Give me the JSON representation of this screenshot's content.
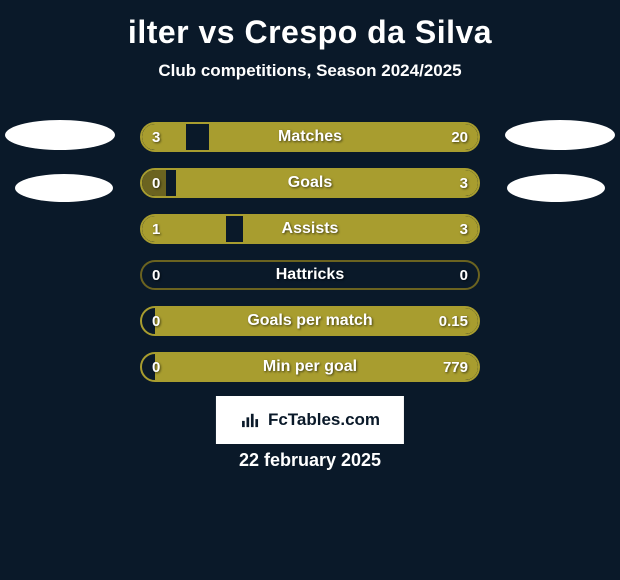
{
  "title": "ilter vs Crespo da Silva",
  "subtitle": "Club competitions, Season 2024/2025",
  "footer_label": "FcTables.com",
  "date": "22 february 2025",
  "colors": {
    "background": "#0a1929",
    "accent": "#a89d2f",
    "border_dim": "#6b6320",
    "text": "#ffffff",
    "logo_bg": "#ffffff"
  },
  "bars": [
    {
      "label": "Matches",
      "left": "3",
      "right": "20",
      "left_pct": 13,
      "right_pct": 80,
      "left_color": "#a89d2f",
      "right_color": "#a89d2f",
      "border_color": "#a89d2f"
    },
    {
      "label": "Goals",
      "left": "0",
      "right": "3",
      "left_pct": 7,
      "right_pct": 90,
      "left_color": "#6b6320",
      "right_color": "#a89d2f",
      "border_color": "#a89d2f"
    },
    {
      "label": "Assists",
      "left": "1",
      "right": "3",
      "left_pct": 25,
      "right_pct": 70,
      "left_color": "#a89d2f",
      "right_color": "#a89d2f",
      "border_color": "#a89d2f"
    },
    {
      "label": "Hattricks",
      "left": "0",
      "right": "0",
      "left_pct": 0,
      "right_pct": 0,
      "left_color": "#6b6320",
      "right_color": "#6b6320",
      "border_color": "#6b6320"
    },
    {
      "label": "Goals per match",
      "left": "0",
      "right": "0.15",
      "left_pct": 0,
      "right_pct": 96,
      "left_color": "#6b6320",
      "right_color": "#a89d2f",
      "border_color": "#a89d2f"
    },
    {
      "label": "Min per goal",
      "left": "0",
      "right": "779",
      "left_pct": 0,
      "right_pct": 96,
      "left_color": "#6b6320",
      "right_color": "#a89d2f",
      "border_color": "#a89d2f"
    }
  ]
}
